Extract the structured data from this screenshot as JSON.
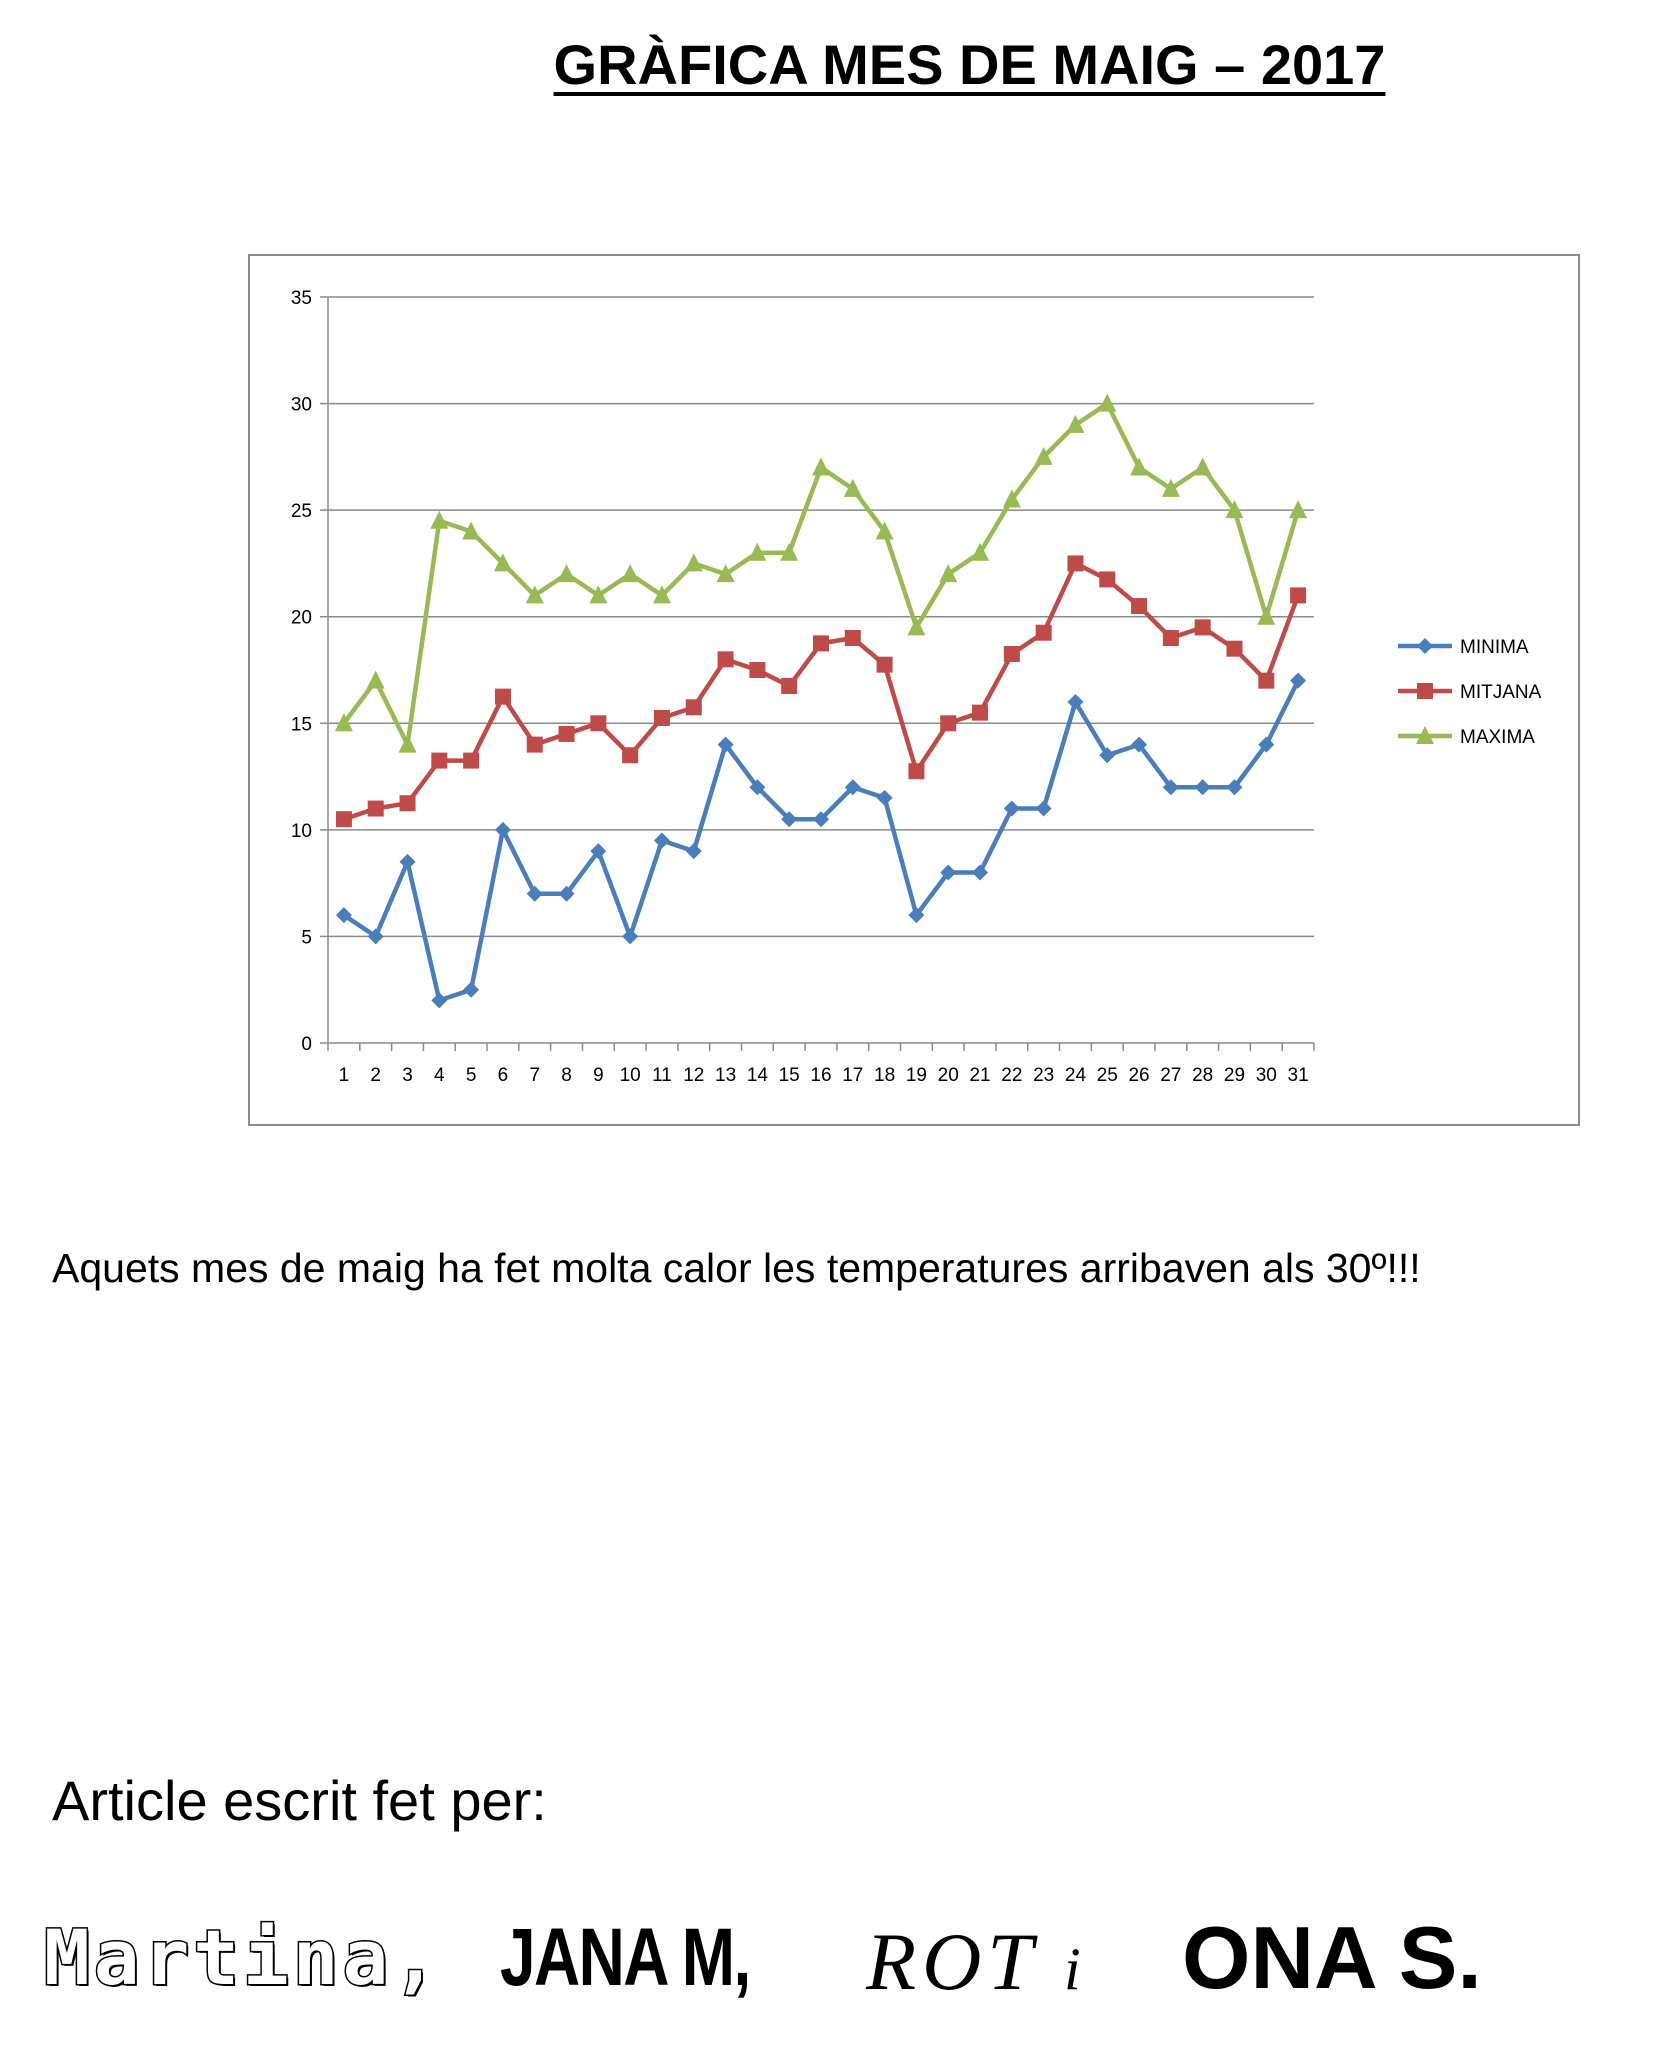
{
  "page": {
    "paragraph": "Aquets mes de maig ha fet molta calor les temperatures arribaven als 30º!!!",
    "byline": "Article escrit fet per:",
    "authors": {
      "martina": "Martina,",
      "jana": "JANA M,",
      "rot": "ROT",
      "conj": "i",
      "ona": "ONA S."
    }
  },
  "chart_data": {
    "type": "line",
    "title": "GRÀFICA MES DE MAIG – 2017",
    "xlabel": "",
    "ylabel": "",
    "ylim": [
      0,
      35
    ],
    "yticks": [
      0,
      5,
      10,
      15,
      20,
      25,
      30,
      35
    ],
    "grid": true,
    "legend": "right",
    "categories": [
      "1",
      "2",
      "3",
      "4",
      "5",
      "6",
      "7",
      "8",
      "9",
      "10",
      "11",
      "12",
      "13",
      "14",
      "15",
      "16",
      "17",
      "18",
      "19",
      "20",
      "21",
      "22",
      "23",
      "24",
      "25",
      "26",
      "27",
      "28",
      "29",
      "30",
      "31"
    ],
    "series": [
      {
        "name": "MINIMA",
        "color": "#4a7ebb",
        "marker": "diamond",
        "values": [
          6,
          5,
          8.5,
          2,
          2.5,
          10,
          7,
          7,
          9,
          5,
          9.5,
          9,
          14,
          12,
          10.5,
          10.5,
          12,
          11.5,
          6,
          8,
          8,
          11,
          11,
          16,
          13.5,
          14,
          12,
          12,
          12,
          14,
          17
        ]
      },
      {
        "name": "MITJANA",
        "color": "#be4b48",
        "marker": "square",
        "values": [
          10.5,
          11,
          11.25,
          13.25,
          13.25,
          16.25,
          14,
          14.5,
          15,
          13.5,
          15.25,
          15.75,
          18,
          17.5,
          16.75,
          18.75,
          19,
          17.75,
          12.75,
          15,
          15.5,
          18.25,
          19.25,
          22.5,
          21.75,
          20.5,
          19,
          19.5,
          18.5,
          17,
          21
        ]
      },
      {
        "name": "MAXIMA",
        "color": "#98b954",
        "marker": "triangle",
        "values": [
          15,
          17,
          14,
          24.5,
          24,
          22.5,
          21,
          22,
          21,
          22,
          21,
          22.5,
          22,
          23,
          23,
          27,
          26,
          24,
          19.5,
          22,
          23,
          25.5,
          27.5,
          29,
          30,
          27,
          26,
          27,
          25,
          20,
          25
        ]
      }
    ]
  }
}
